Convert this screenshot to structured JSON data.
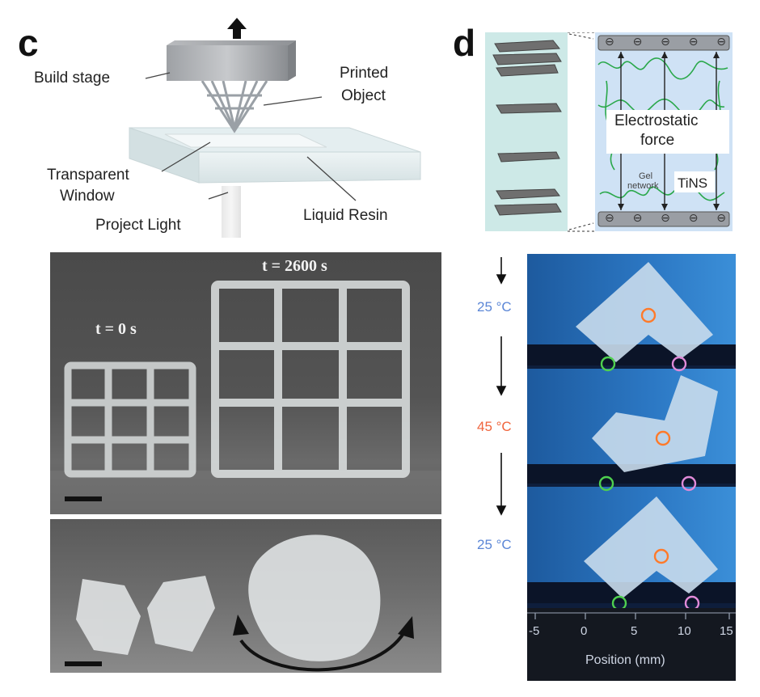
{
  "panel_c": {
    "letter": "c",
    "labels": {
      "build_stage": "Build stage",
      "printed_object_line1": "Printed",
      "printed_object_line2": "Object",
      "transparent_window_line1": "Transparent",
      "transparent_window_line2": "Window",
      "project_light": "Project Light",
      "liquid_resin": "Liquid Resin"
    },
    "photo1": {
      "left_time": "t = 0 s",
      "right_time": "t = 2600 s"
    }
  },
  "panel_d": {
    "letter": "d",
    "schematic": {
      "force_line1": "Electrostatic",
      "force_line2": "force",
      "gel_line1": "Gel",
      "gel_line2": "network",
      "tins": "TiNS",
      "charge_symbol": "⊖"
    },
    "temperatures": [
      {
        "label": "25 °C",
        "color": "#5b86d6"
      },
      {
        "label": "45 °C",
        "color": "#f0643c"
      },
      {
        "label": "25 °C",
        "color": "#5b86d6"
      }
    ],
    "axis": {
      "xlabel": "Position (mm)",
      "ticks": [
        "-5",
        "0",
        "5",
        "10",
        "15"
      ]
    }
  }
}
